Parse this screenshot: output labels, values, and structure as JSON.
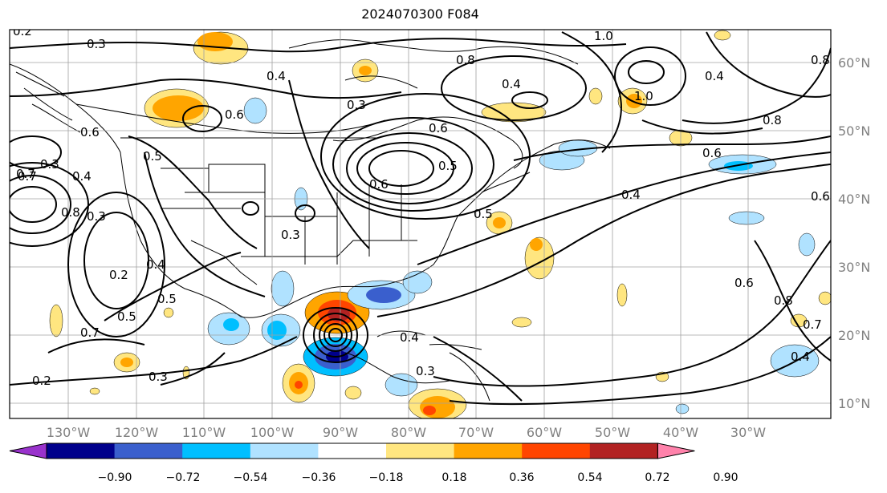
{
  "title": "2024070300 F084",
  "longitude_labels": [
    "130°W",
    "120°W",
    "110°W",
    "100°W",
    "90°W",
    "80°W",
    "70°W",
    "60°W",
    "50°W",
    "40°W",
    "30°W"
  ],
  "latitude_labels": [
    "60°N",
    "50°N",
    "40°N",
    "30°N",
    "20°N",
    "10°N"
  ],
  "colorbar": {
    "tick_labels": [
      "−0.90",
      "−0.72",
      "−0.54",
      "−0.36",
      "−0.18",
      "0.18",
      "0.36",
      "0.54",
      "0.72",
      "0.90"
    ],
    "colors": [
      "#9932cc",
      "#00008b",
      "#3a5fcd",
      "#00bfff",
      "#b0e2ff",
      "#ffffff",
      "#ffe680",
      "#ffa500",
      "#ff4500",
      "#b22222",
      "#ff82ab"
    ]
  },
  "contour_labels": [
    "0.3",
    "0.2",
    "0.5",
    "0.6",
    "0.4",
    "0.8",
    "0.3",
    "0.6",
    "0.5",
    "0.3",
    "1.0",
    "0.4",
    "0.8",
    "0.6",
    "0.4",
    "0.7",
    "0.4",
    "0.3",
    "0.2",
    "0.6",
    "0.7",
    "0.4",
    "0.5",
    "0.5",
    "0.7",
    "0.2",
    "0.3",
    "0.3",
    "0.6",
    "0.8",
    "0.7",
    "0.6",
    "0.5",
    "0.3",
    "1.0",
    "0.8",
    "0.4",
    "0.4",
    "0.6",
    "0.8",
    "0.4"
  ]
}
